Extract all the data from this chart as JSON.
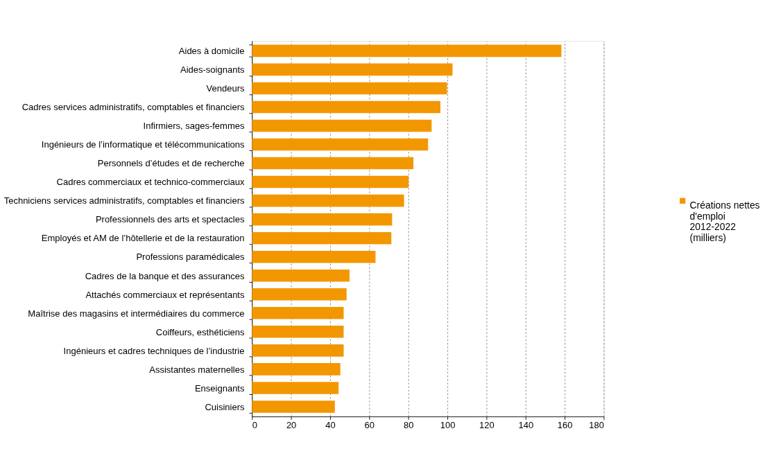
{
  "chart_data": {
    "type": "bar",
    "orientation": "horizontal",
    "categories": [
      "Aides à domicile",
      "Aides-soignants",
      "Vendeurs",
      "Cadres services administratifs, comptables et financiers",
      "Infirmiers, sages-femmes",
      "Ingénieurs de l’informatique et télécommunications",
      "Personnels d’études et de recherche",
      "Cadres commerciaux et technico-commerciaux",
      "Techniciens services administratifs, comptables et financiers",
      "Professionnels des arts et spectacles",
      "Employés et AM de l’hôtellerie et de la restauration",
      "Professions paramédicales",
      "Cadres de la banque et des assurances",
      "Attachés commerciaux et représentants",
      "Maîtrise des magasins et intermédiaires du commerce",
      "Coiffeurs, esthéticiens",
      "Ingénieurs et cadres techniques de l’industrie",
      "Assistantes maternelles",
      "Enseignants",
      "Cuisiniers"
    ],
    "series": [
      {
        "name": "Créations nettes d'emploi 2012-2022 (milliers)",
        "color": "#f39700",
        "values": [
          158.3,
          102.6,
          99.8,
          96.4,
          91.9,
          90.1,
          82.6,
          80.1,
          77.8,
          71.7,
          71.3,
          63.2,
          49.9,
          48.4,
          46.9,
          46.9,
          46.9,
          45.2,
          44.3,
          42.4
        ]
      }
    ],
    "xlim": [
      0,
      180
    ],
    "xticks": [
      0,
      20,
      40,
      60,
      80,
      100,
      120,
      140,
      160,
      180
    ],
    "grid": "x",
    "legend": "right"
  }
}
